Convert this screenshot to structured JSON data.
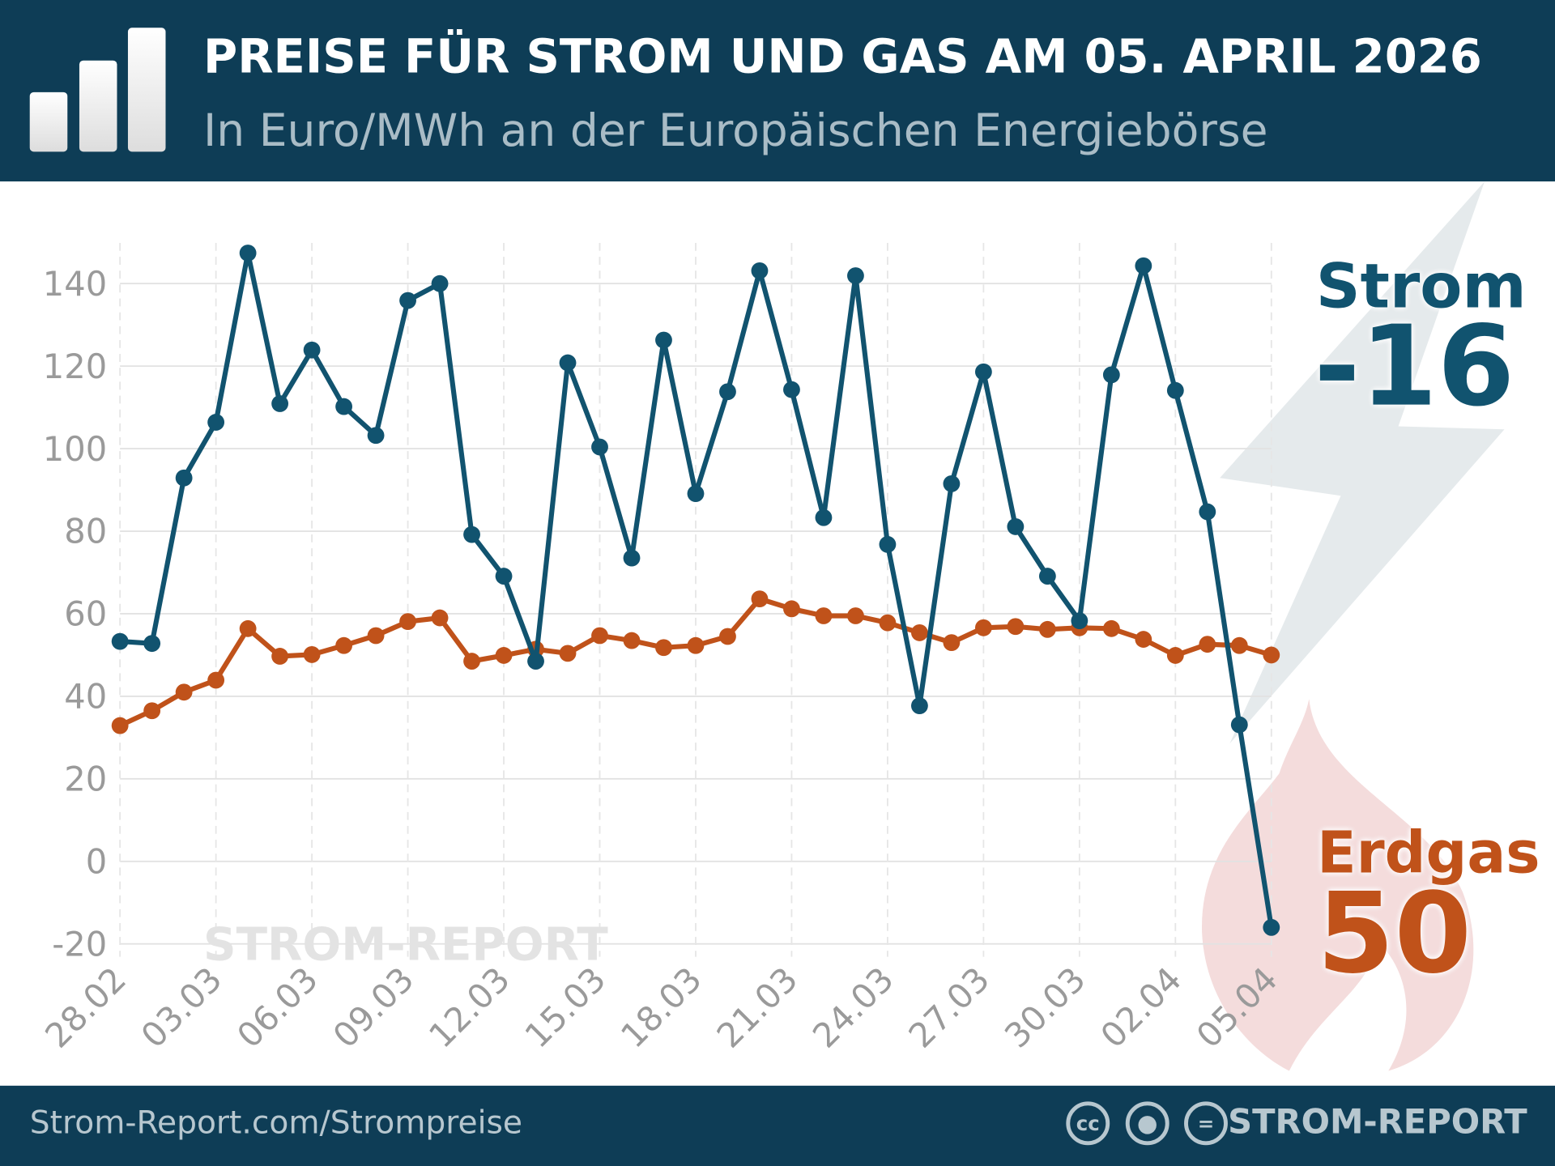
{
  "header": {
    "title": "PREISE FÜR STROM UND GAS AM 05. APRIL 2026",
    "subtitle": "In Euro/MWh an der Europäischen Energiebörse",
    "logo_icon": "bar-chart-icon"
  },
  "footer": {
    "url": "Strom-Report.com/Strompreise",
    "brand": "STROM-REPORT",
    "license_icons": [
      "cc-icon",
      "by-icon",
      "nd-icon"
    ],
    "cc_text": "cc",
    "nd_text": "="
  },
  "watermark": "STROM-REPORT",
  "labels": {
    "strom_name": "Strom",
    "strom_value": "-16",
    "gas_name": "Erdgas",
    "gas_value": "50"
  },
  "colors": {
    "strom": "#11536f",
    "gas": "#c0521a",
    "header": "#0e3d56"
  },
  "chart_data": {
    "type": "line",
    "title": "PREISE FÜR STROM UND GAS AM 05. APRIL 2026",
    "subtitle": "In Euro/MWh an der Europäischen Energiebörse",
    "ylim": [
      -20,
      150
    ],
    "yticks": [
      -20,
      0,
      20,
      40,
      60,
      80,
      100,
      120,
      140
    ],
    "xtick_labels": [
      "28.02",
      "03.03",
      "06.03",
      "09.03",
      "12.03",
      "15.03",
      "18.03",
      "21.03",
      "24.03",
      "27.03",
      "30.03",
      "02.04",
      "05.04"
    ],
    "grid": true,
    "x": [
      "28.02",
      "01.03",
      "02.03",
      "03.03",
      "04.03",
      "05.03",
      "06.03",
      "07.03",
      "08.03",
      "09.03",
      "10.03",
      "11.03",
      "12.03",
      "13.03",
      "14.03",
      "15.03",
      "16.03",
      "17.03",
      "18.03",
      "19.03",
      "20.03",
      "21.03",
      "22.03",
      "23.03",
      "24.03",
      "25.03",
      "26.03",
      "27.03",
      "28.03",
      "29.03",
      "30.03",
      "31.03",
      "01.04",
      "02.04",
      "03.04",
      "04.04",
      "05.04"
    ],
    "series": [
      {
        "name": "Strom",
        "color": "#11536f",
        "values": [
          53.3,
          52.8,
          92.9,
          106.4,
          147.4,
          110.9,
          123.9,
          110.2,
          103.2,
          135.9,
          140,
          79.2,
          69.1,
          48.5,
          120.8,
          100.4,
          73.5,
          126.3,
          89.1,
          113.8,
          143.1,
          114.3,
          83.3,
          141.9,
          76.8,
          37.7,
          91.5,
          118.6,
          81.1,
          69.1,
          58.3,
          117.9,
          144.3,
          114.1,
          84.7,
          33.1,
          -16
        ]
      },
      {
        "name": "Erdgas",
        "color": "#c0521a",
        "values": [
          32.9,
          36.5,
          41,
          43.9,
          56.4,
          49.7,
          50.1,
          52.3,
          54.7,
          58.1,
          59,
          48.5,
          49.9,
          51.4,
          50.4,
          54.7,
          53.5,
          51.8,
          52.3,
          54.5,
          63.6,
          61.2,
          59.5,
          59.5,
          57.8,
          55.4,
          53,
          56.6,
          56.9,
          56.2,
          56.6,
          56.4,
          53.8,
          49.9,
          52.6,
          52.3,
          50
        ]
      }
    ]
  }
}
